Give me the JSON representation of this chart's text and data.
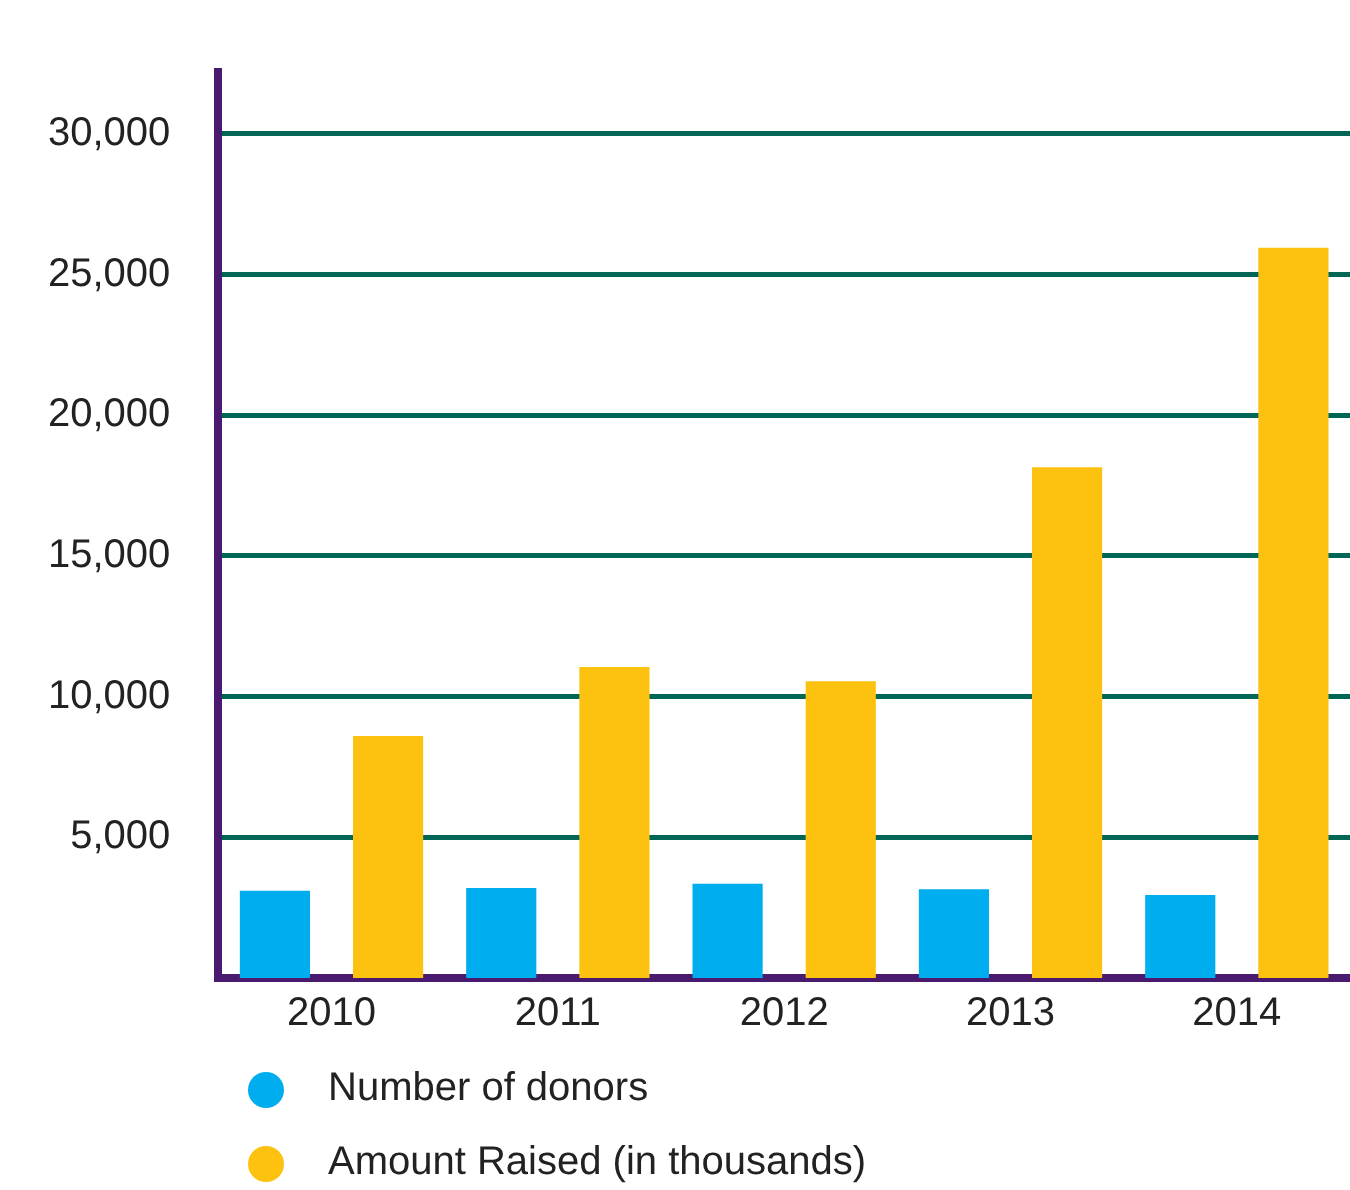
{
  "chart_data": {
    "type": "bar",
    "categories": [
      "2010",
      "2011",
      "2012",
      "2013",
      "2014"
    ],
    "series": [
      {
        "name": "Number of donors",
        "color": "#00adee",
        "values": [
          3100,
          3200,
          3350,
          3150,
          2950
        ]
      },
      {
        "name": "Amount Raised (in thousands)",
        "color": "#fdc210",
        "values": [
          8600,
          11050,
          10550,
          18150,
          25950
        ]
      }
    ],
    "ylim": [
      0,
      32200
    ],
    "yticks": [
      {
        "value": 5000,
        "label": "5,000"
      },
      {
        "value": 10000,
        "label": "10,000"
      },
      {
        "value": 15000,
        "label": "15,000"
      },
      {
        "value": 20000,
        "label": "20,000"
      },
      {
        "value": 25000,
        "label": "25,000"
      },
      {
        "value": 30000,
        "label": "30,000"
      }
    ],
    "grid": "y",
    "legend": "bottom left",
    "marker": "circle"
  }
}
